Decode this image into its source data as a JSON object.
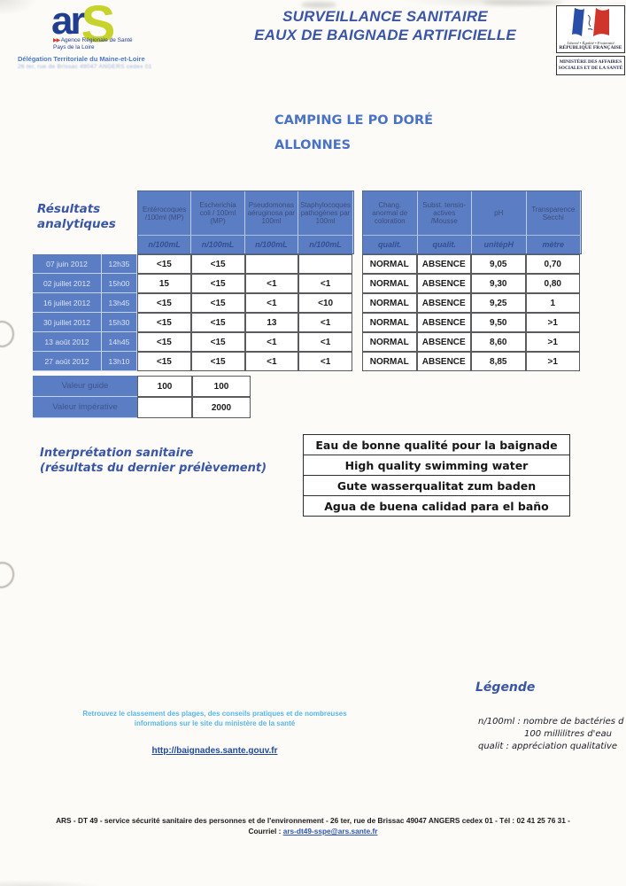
{
  "header": {
    "ars_logo": {
      "word_part1": "ar",
      "word_part2": "S",
      "arrows": "▶▶",
      "agency": "Agence Régionale de Santé",
      "region": "Pays de la Loire"
    },
    "delegation": "Délégation Territoriale du Maine-et-Loire",
    "delegation_address": "26 ter, rue de Brissac 49047 ANGERS cedex 01",
    "title_line1": "SURVEILLANCE SANITAIRE",
    "title_line2": "EAUX DE BAIGNADE ARTIFICIELLE",
    "republic": {
      "motto": "Liberté • Égalité • Fraternité",
      "name": "RÉPUBLIQUE FRANÇAISE",
      "ministry": "MINISTÈRE DES AFFAIRES SOCIALES ET DE LA SANTÉ"
    }
  },
  "site": {
    "name": "CAMPING LE PO DORÉ",
    "city": "ALLONNES"
  },
  "results": {
    "section_label_line1": "Résultats",
    "section_label_line2": "analytiques",
    "left_columns": [
      {
        "label": "Entérocoques /100ml (MP)",
        "unit": "n/100mL"
      },
      {
        "label": "Escherichia coli / 100ml (MP)",
        "unit": "n/100mL"
      },
      {
        "label": "Pseudomonas aéruginosa par 100ml",
        "unit": "n/100mL"
      },
      {
        "label": "Staphylocoques pathogènes par 100ml",
        "unit": "n/100mL"
      }
    ],
    "right_columns": [
      {
        "label": "Chang. anormal de coloration",
        "unit": "qualit."
      },
      {
        "label": "Subst. tensio-actives /Mousse",
        "unit": "qualit."
      },
      {
        "label": "pH",
        "unit": "unitépH"
      },
      {
        "label": "Transparence Secchi",
        "unit": "mètre"
      }
    ],
    "rows": [
      {
        "date": "07 juin 2012",
        "time": "12h35",
        "left": [
          "<15",
          "<15",
          "",
          ""
        ],
        "right": [
          "NORMAL",
          "ABSENCE",
          "9,05",
          "0,70"
        ]
      },
      {
        "date": "02 juillet 2012",
        "time": "15h00",
        "left": [
          "15",
          "<15",
          "<1",
          "<1"
        ],
        "right": [
          "NORMAL",
          "ABSENCE",
          "9,30",
          "0,80"
        ]
      },
      {
        "date": "16 juillet 2012",
        "time": "13h45",
        "left": [
          "<15",
          "<15",
          "<1",
          "<10"
        ],
        "right": [
          "NORMAL",
          "ABSENCE",
          "9,25",
          "1"
        ]
      },
      {
        "date": "30 juillet 2012",
        "time": "15h30",
        "left": [
          "<15",
          "<15",
          "13",
          "<1"
        ],
        "right": [
          "NORMAL",
          "ABSENCE",
          "9,50",
          ">1"
        ]
      },
      {
        "date": "13 août 2012",
        "time": "14h45",
        "left": [
          "<15",
          "<15",
          "<1",
          "<1"
        ],
        "right": [
          "NORMAL",
          "ABSENCE",
          "8,60",
          ">1"
        ]
      },
      {
        "date": "27 août 2012",
        "time": "13h10",
        "left": [
          "<15",
          "<15",
          "<1",
          "<1"
        ],
        "right": [
          "NORMAL",
          "ABSENCE",
          "8,85",
          ">1"
        ]
      }
    ],
    "reference_rows": [
      {
        "label": "Valeur guide",
        "values": [
          "100",
          "100"
        ]
      },
      {
        "label": "Valeur impérative",
        "values": [
          "",
          "2000"
        ]
      }
    ]
  },
  "interpretation": {
    "label_line1": "Interprétation sanitaire",
    "label_line2": "(résultats du dernier prélèvement)",
    "quality_box": [
      "Eau de bonne qualité pour la baignade",
      "High quality swimming water",
      "Gute wasserqualitat zum baden",
      "Agua de buena calidad para el baño"
    ]
  },
  "legend": {
    "title": "Légende",
    "line1": "n/100ml : nombre de bactéries d",
    "line2": "100 millilitres d'eau",
    "line3": "qualit   : appréciation qualitative"
  },
  "promo": {
    "line1": "Retrouvez le classement des plages, des conseils pratiques et de nombreuses",
    "line2": "informations sur le site du ministère de la santé",
    "link": "http://baignades.sante.gouv.fr"
  },
  "footer": {
    "line1": "ARS - DT 49 - service sécurité sanitaire des personnes et de l'environnement - 26 ter, rue de Brissac 49047 ANGERS cedex 01 - Tél : 02 41 25 76 31 -",
    "line2_label": "Courriel : ",
    "email": "ars-dt49-sspe@ars.sante.fr"
  },
  "colors": {
    "table_blue": "#5b7dc4",
    "title_blue": "#3a55a6",
    "site_blue": "#4a72c4",
    "promo_blue": "#58b6e8",
    "link_blue": "#23489c",
    "ars_navy": "#1f3e8f",
    "ars_green": "#c7d32a"
  }
}
